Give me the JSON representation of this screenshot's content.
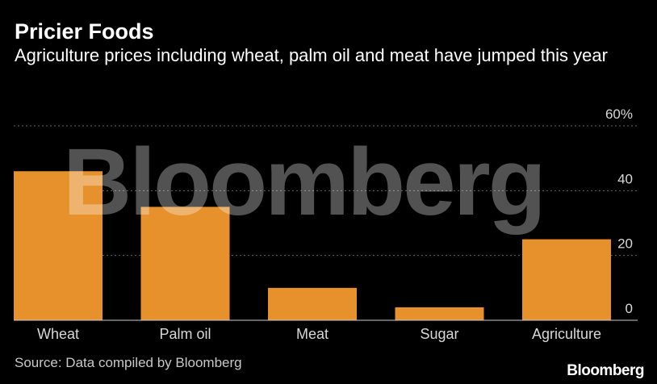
{
  "header": {
    "title": "Pricier Foods",
    "subtitle": "Agriculture prices including wheat, palm oil and meat have jumped this year"
  },
  "footer": {
    "source": "Source: Data compiled by Bloomberg",
    "brand": "Bloomberg"
  },
  "watermark": "Bloomberg",
  "colors": {
    "background": "#000000",
    "bar": "#e6912c",
    "gridline": "#666666",
    "axis_text": "#d8d8d8"
  },
  "chart_data": {
    "type": "bar",
    "title": "Pricier Foods",
    "xlabel": "",
    "ylabel": "",
    "categories": [
      "Wheat",
      "Palm oil",
      "Meat",
      "Sugar",
      "Agriculture"
    ],
    "values": [
      46,
      35,
      10,
      4,
      25
    ],
    "ylim": [
      0,
      60
    ],
    "yticks": [
      0,
      20,
      40,
      60
    ],
    "ytick_labels": [
      "0",
      "20",
      "40",
      "60%"
    ],
    "grid": true,
    "y_axis_side": "right"
  }
}
